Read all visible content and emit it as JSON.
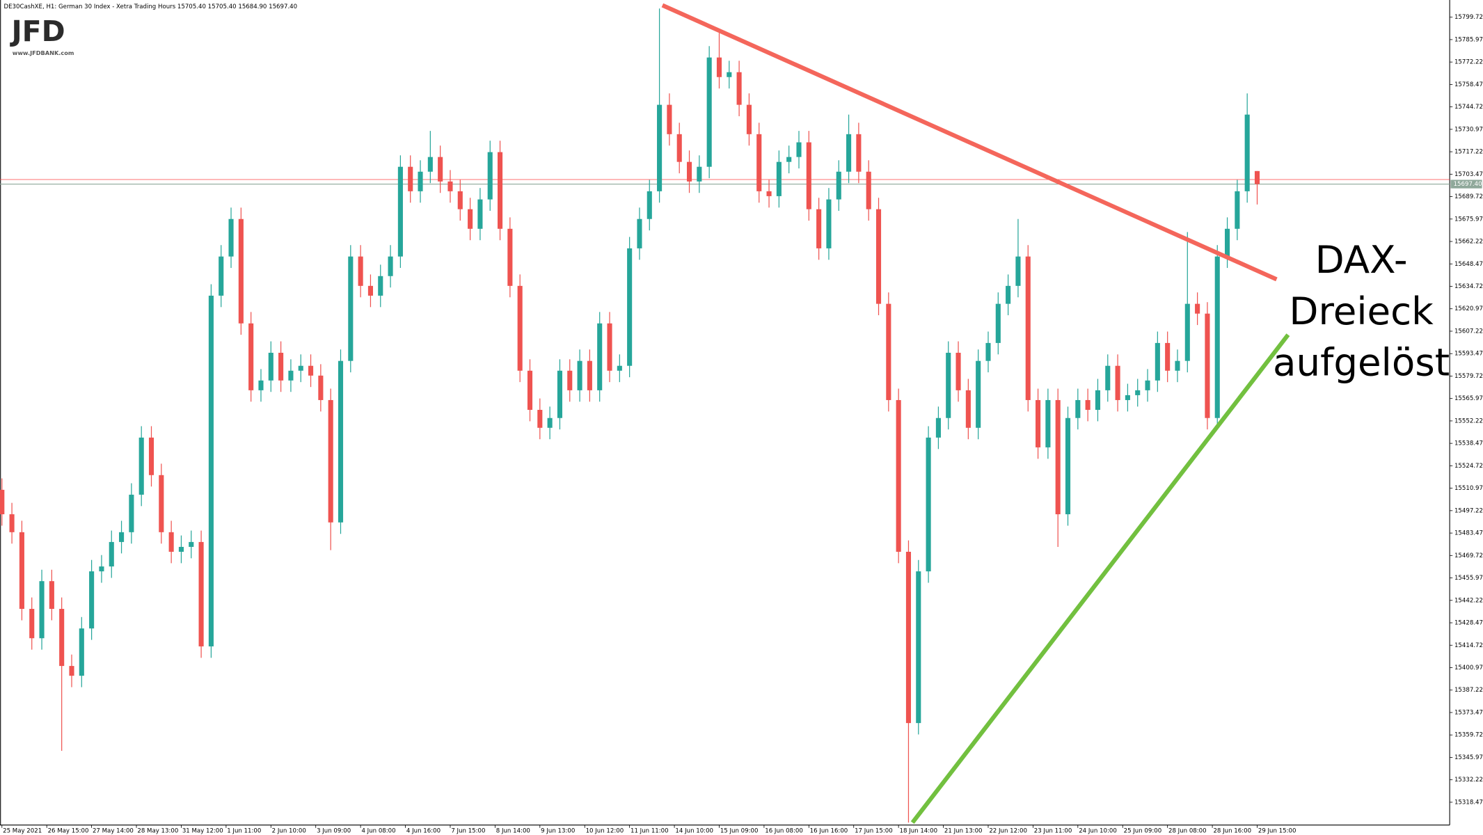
{
  "chart_data": {
    "type": "candlestick",
    "title": "DE30CashXE, H1:  German 30 Index  - Xetra Trading Hours  15705.40 15705.40 15684.90 15697.40",
    "logo": "JFD",
    "logo_url": "www.JFDBANK.com",
    "annotation": [
      "DAX-",
      "Dreieck",
      "aufgelöst"
    ],
    "up_color": "#26a69a",
    "down_color": "#ef5350",
    "x": [
      0,
      2,
      4,
      6,
      8,
      10,
      12,
      14,
      16,
      18,
      20,
      22,
      24,
      26,
      28,
      30,
      32,
      34,
      36,
      38,
      40,
      42,
      44,
      46,
      48,
      50,
      52,
      54,
      56,
      58,
      60,
      62,
      64,
      66,
      68,
      70,
      72,
      74,
      76,
      78,
      80,
      82,
      84,
      86,
      88,
      90,
      92,
      94,
      96,
      98,
      100,
      102,
      104,
      106,
      108,
      110,
      112,
      114,
      116,
      118,
      120,
      122,
      124,
      126,
      128,
      130,
      132,
      134,
      136,
      138,
      140,
      142,
      144,
      146,
      148,
      150,
      152,
      154,
      156,
      158,
      160,
      162,
      164,
      166,
      168,
      170,
      172,
      174,
      176,
      178,
      180,
      182,
      184,
      186,
      188,
      190,
      192,
      194,
      196,
      198,
      200,
      202,
      204,
      206,
      208,
      210,
      212,
      214,
      216,
      218,
      220,
      222,
      224,
      226,
      228,
      230,
      232,
      234,
      236,
      238,
      240,
      242,
      244,
      246,
      248,
      250,
      252
    ],
    "open": [
      15510,
      15495,
      15484,
      15437,
      15419,
      15454,
      15437,
      15402,
      15396,
      15425,
      15460,
      15463,
      15478,
      15484,
      15507,
      15542,
      15519,
      15484,
      15472,
      15475,
      15478,
      15414,
      15629,
      15653,
      15676,
      15612,
      15571,
      15577,
      15594,
      15577,
      15583,
      15586,
      15580,
      15565,
      15490,
      15589,
      15653,
      15635,
      15629,
      15641,
      15653,
      15708,
      15693,
      15705,
      15714,
      15699,
      15693,
      15682,
      15670,
      15688,
      15717,
      15670,
      15635,
      15583,
      15559,
      15548,
      15554,
      15583,
      15571,
      15589,
      15571,
      15612,
      15583,
      15586,
      15658,
      15676,
      15693,
      15746,
      15728,
      15711,
      15699,
      15708,
      15775,
      15763,
      15766,
      15746,
      15728,
      15693,
      15690,
      15711,
      15714,
      15723,
      15682,
      15658,
      15688,
      15705,
      15728,
      15705,
      15682,
      15624,
      15565,
      15472,
      15367,
      15460,
      15542,
      15554,
      15594,
      15571,
      15548,
      15589,
      15600,
      15624,
      15635,
      15653,
      15565,
      15536,
      15565,
      15495,
      15554,
      15565,
      15559,
      15571,
      15586,
      15565,
      15568,
      15571,
      15577,
      15600,
      15583,
      15589,
      15624,
      15618,
      15554,
      15653,
      15670,
      15693,
      15705.4
    ],
    "high": [
      15517,
      15502,
      15491,
      15444,
      15461,
      15461,
      15444,
      15409,
      15432,
      15467,
      15470,
      15485,
      15491,
      15514,
      15549,
      15549,
      15526,
      15491,
      15482,
      15485,
      15485,
      15636,
      15660,
      15683,
      15683,
      15619,
      15584,
      15601,
      15601,
      15590,
      15593,
      15593,
      15587,
      15572,
      15596,
      15660,
      15660,
      15642,
      15648,
      15660,
      15715,
      15715,
      15712,
      15730,
      15721,
      15706,
      15700,
      15689,
      15695,
      15724,
      15724,
      15677,
      15642,
      15590,
      15566,
      15561,
      15590,
      15590,
      15596,
      15596,
      15619,
      15619,
      15593,
      15665,
      15683,
      15700,
      15805,
      15753,
      15735,
      15718,
      15715,
      15782,
      15790,
      15773,
      15773,
      15753,
      15735,
      15700,
      15718,
      15721,
      15730,
      15730,
      15689,
      15695,
      15712,
      15740,
      15735,
      15712,
      15689,
      15631,
      15572,
      15479,
      15467,
      15549,
      15561,
      15601,
      15601,
      15578,
      15596,
      15607,
      15631,
      15642,
      15676,
      15660,
      15572,
      15572,
      15572,
      15561,
      15572,
      15572,
      15578,
      15593,
      15593,
      15575,
      15578,
      15584,
      15607,
      15607,
      15596,
      15668,
      15631,
      15625,
      15660,
      15677,
      15700,
      15753,
      15705.4
    ],
    "low": [
      15488,
      15477,
      15430,
      15412,
      15412,
      15430,
      15350,
      15389,
      15389,
      15418,
      15453,
      15456,
      15471,
      15477,
      15500,
      15512,
      15477,
      15465,
      15465,
      15468,
      15407,
      15407,
      15622,
      15646,
      15605,
      15564,
      15564,
      15570,
      15570,
      15570,
      15576,
      15573,
      15558,
      15473,
      15483,
      15582,
      15628,
      15622,
      15622,
      15634,
      15646,
      15686,
      15686,
      15698,
      15692,
      15686,
      15675,
      15663,
      15663,
      15681,
      15663,
      15628,
      15576,
      15552,
      15541,
      15541,
      15547,
      15564,
      15564,
      15564,
      15564,
      15576,
      15576,
      15579,
      15651,
      15669,
      15686,
      15721,
      15704,
      15692,
      15692,
      15701,
      15756,
      15756,
      15739,
      15721,
      15686,
      15683,
      15683,
      15704,
      15707,
      15675,
      15651,
      15651,
      15681,
      15698,
      15698,
      15675,
      15617,
      15558,
      15465,
      15306,
      15360,
      15453,
      15535,
      15547,
      15564,
      15541,
      15541,
      15582,
      15593,
      15617,
      15628,
      15558,
      15529,
      15529,
      15475,
      15488,
      15547,
      15552,
      15552,
      15564,
      15558,
      15558,
      15561,
      15564,
      15570,
      15576,
      15576,
      15582,
      15611,
      15547,
      15547,
      15646,
      15663,
      15686,
      15684.9
    ],
    "close": [
      15495,
      15484,
      15437,
      15419,
      15454,
      15437,
      15402,
      15396,
      15425,
      15460,
      15463,
      15478,
      15484,
      15507,
      15542,
      15519,
      15484,
      15472,
      15475,
      15478,
      15414,
      15629,
      15653,
      15676,
      15612,
      15571,
      15577,
      15594,
      15577,
      15583,
      15586,
      15580,
      15565,
      15490,
      15589,
      15653,
      15635,
      15629,
      15641,
      15653,
      15708,
      15693,
      15705,
      15714,
      15699,
      15693,
      15682,
      15670,
      15688,
      15717,
      15670,
      15635,
      15583,
      15559,
      15548,
      15554,
      15583,
      15571,
      15589,
      15571,
      15612,
      15583,
      15586,
      15658,
      15676,
      15693,
      15746,
      15728,
      15711,
      15699,
      15708,
      15775,
      15763,
      15766,
      15746,
      15728,
      15693,
      15690,
      15711,
      15714,
      15723,
      15682,
      15658,
      15688,
      15705,
      15728,
      15705,
      15682,
      15624,
      15565,
      15472,
      15367,
      15460,
      15542,
      15554,
      15594,
      15571,
      15548,
      15589,
      15600,
      15624,
      15635,
      15653,
      15565,
      15536,
      15565,
      15495,
      15554,
      15565,
      15559,
      15571,
      15586,
      15565,
      15568,
      15571,
      15577,
      15600,
      15583,
      15589,
      15624,
      15618,
      15554,
      15653,
      15670,
      15693,
      15740,
      15697.4
    ],
    "xlim": [
      -0.382,
      290.65
    ],
    "xticks": [
      {
        "value": 0,
        "label": "25 May 2021"
      },
      {
        "value": 9,
        "label": "26 May 15:00"
      },
      {
        "value": 18,
        "label": "27 May 14:00"
      },
      {
        "value": 27,
        "label": "28 May 13:00"
      },
      {
        "value": 36,
        "label": "31 May 12:00"
      },
      {
        "value": 45,
        "label": "1 Jun 11:00"
      },
      {
        "value": 54,
        "label": "2 Jun 10:00"
      },
      {
        "value": 63,
        "label": "3 Jun 09:00"
      },
      {
        "value": 72,
        "label": "4 Jun 08:00"
      },
      {
        "value": 81,
        "label": "4 Jun 16:00"
      },
      {
        "value": 90,
        "label": "7 Jun 15:00"
      },
      {
        "value": 99,
        "label": "8 Jun 14:00"
      },
      {
        "value": 108,
        "label": "9 Jun 13:00"
      },
      {
        "value": 117,
        "label": "10 Jun 12:00"
      },
      {
        "value": 126,
        "label": "11 Jun 11:00"
      },
      {
        "value": 135,
        "label": "14 Jun 10:00"
      },
      {
        "value": 144,
        "label": "15 Jun 09:00"
      },
      {
        "value": 153,
        "label": "16 Jun 08:00"
      },
      {
        "value": 162,
        "label": "16 Jun 16:00"
      },
      {
        "value": 171,
        "label": "17 Jun 15:00"
      },
      {
        "value": 180,
        "label": "18 Jun 14:00"
      },
      {
        "value": 189,
        "label": "21 Jun 13:00"
      },
      {
        "value": 198,
        "label": "22 Jun 12:00"
      },
      {
        "value": 207,
        "label": "23 Jun 11:00"
      },
      {
        "value": 216,
        "label": "24 Jun 10:00"
      },
      {
        "value": 225,
        "label": "25 Jun 09:00"
      },
      {
        "value": 234,
        "label": "28 Jun 08:00"
      },
      {
        "value": 243,
        "label": "28 Jun 16:00"
      },
      {
        "value": 252,
        "label": "29 Jun 15:00"
      }
    ],
    "ylim": [
      15304.5,
      15808.5
    ],
    "yticks": [
      15799.72,
      15785.97,
      15772.22,
      15758.47,
      15744.72,
      15730.97,
      15717.22,
      15703.47,
      15689.72,
      15675.97,
      15662.22,
      15648.47,
      15634.72,
      15620.97,
      15607.22,
      15593.47,
      15579.72,
      15565.97,
      15552.22,
      15538.47,
      15524.72,
      15510.97,
      15497.22,
      15483.47,
      15469.72,
      15455.97,
      15442.22,
      15428.47,
      15414.72,
      15400.97,
      15387.22,
      15373.47,
      15359.72,
      15345.97,
      15332.22,
      15318.47
    ],
    "bid": {
      "value": 15697.4,
      "label": "15697.40"
    },
    "bid_color": "#8fa89a",
    "ask_line": 15700.2,
    "ask_color": "#ff4040",
    "trendlines": [
      {
        "color": "#f4665b",
        "x": [
          132.6,
          255.9
        ],
        "y": [
          15807,
          15639
        ]
      },
      {
        "color": "#72c03f",
        "x": [
          182.8,
          258.2
        ],
        "y": [
          15306,
          15605
        ]
      }
    ]
  }
}
